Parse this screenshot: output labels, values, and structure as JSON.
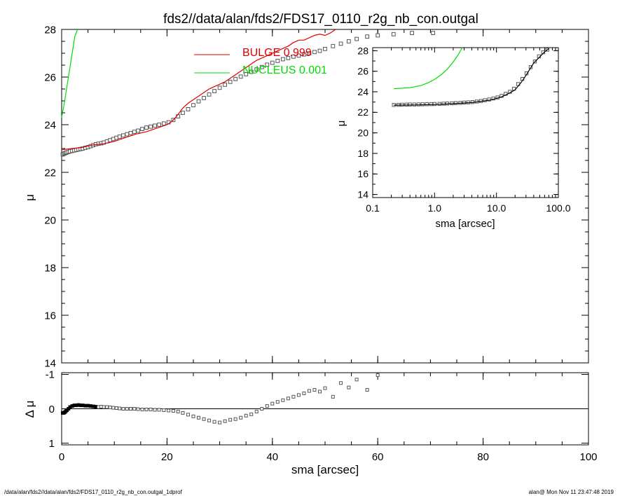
{
  "title": "fds2//data/alan/fds2/FDS17_0110_r2g_nb_con.outgal",
  "footer": {
    "left": "/data/alan/fds2//data/alan/fds2/FDS17_0110_r2g_nb_con.outgal_1dprof",
    "right": "alan@  Mon Nov 11 23:47:48 2019"
  },
  "colors": {
    "bulge": "#e00000",
    "nucleus": "#00dd00",
    "data": "#555555",
    "axes": "#000000"
  },
  "legend": [
    {
      "label": "BULGE  0.999",
      "color": "#e00000"
    },
    {
      "label": "NUCLEUS  0.001",
      "color": "#00dd00"
    }
  ],
  "chart_data": [
    {
      "type": "scatter",
      "panel": "main",
      "xlabel": "",
      "ylabel": "μ",
      "xlim": [
        0,
        100
      ],
      "ylim": [
        28,
        14
      ],
      "y_inverted": true,
      "xticks": [
        "0",
        "20",
        "40",
        "60",
        "80",
        "100"
      ],
      "yticks": [
        "14",
        "16",
        "18",
        "20",
        "22",
        "24",
        "26",
        "28"
      ],
      "legend_placement": "top-center",
      "series": [
        {
          "name": "data",
          "marker": "square",
          "x": [
            0.2,
            0.4,
            0.6,
            0.8,
            1.0,
            1.3,
            1.6,
            2.0,
            2.4,
            2.8,
            3.2,
            3.6,
            4.0,
            4.5,
            5.0,
            5.5,
            6.0,
            6.5,
            7.0,
            7.5,
            8.0,
            8.6,
            9.2,
            9.8,
            10.4,
            11.0,
            11.7,
            12.4,
            13.1,
            13.8,
            14.5,
            15.3,
            16.1,
            16.9,
            17.7,
            18.5,
            19.4,
            20.3,
            21.2,
            22.1,
            23.0,
            24.0,
            25.0,
            26.0,
            27.0,
            28.0,
            29.0,
            30.0,
            31.0,
            32.0,
            33.0,
            34.0,
            35.0,
            36.0,
            37.0,
            38.0,
            39.0,
            40.0,
            41.0,
            42.0,
            43.0,
            44.0,
            45.0,
            46.0,
            47.0,
            48.0,
            49.0,
            50.0,
            51.5,
            53.0,
            54.5,
            56.0,
            58.0,
            60.0,
            63.0,
            66.5,
            70.5
          ],
          "y": [
            22.75,
            22.78,
            22.8,
            22.82,
            22.84,
            22.86,
            22.88,
            22.9,
            22.92,
            22.94,
            22.96,
            22.98,
            23.0,
            23.03,
            23.06,
            23.1,
            23.14,
            23.18,
            23.2,
            23.22,
            23.25,
            23.3,
            23.35,
            23.4,
            23.45,
            23.5,
            23.55,
            23.6,
            23.65,
            23.7,
            23.75,
            23.82,
            23.88,
            23.92,
            23.96,
            24.0,
            24.05,
            24.1,
            24.2,
            24.35,
            24.5,
            24.65,
            24.82,
            24.98,
            25.12,
            25.27,
            25.41,
            25.55,
            25.68,
            25.8,
            25.92,
            26.02,
            26.12,
            26.22,
            26.32,
            26.42,
            26.52,
            26.6,
            26.68,
            26.75,
            26.8,
            26.86,
            26.9,
            26.95,
            27.0,
            27.05,
            27.1,
            27.18,
            27.3,
            27.4,
            27.5,
            27.6,
            27.7,
            27.75,
            27.8,
            27.85,
            27.85
          ]
        },
        {
          "name": "BULGE",
          "style": "line",
          "x": [
            0,
            2,
            4,
            6,
            8,
            10,
            12,
            14,
            16,
            18,
            20,
            21,
            22,
            23,
            24,
            25,
            26,
            27,
            28,
            29,
            30,
            31,
            32,
            33,
            34,
            35,
            36,
            37,
            38,
            39,
            40,
            41,
            42,
            43,
            44,
            45,
            46,
            47,
            48,
            49,
            50,
            51,
            52
          ],
          "y": [
            22.95,
            23.0,
            23.05,
            23.15,
            23.2,
            23.3,
            23.45,
            23.6,
            23.7,
            23.85,
            24.0,
            24.15,
            24.4,
            24.7,
            24.9,
            25.05,
            25.2,
            25.35,
            25.5,
            25.6,
            25.7,
            25.8,
            25.95,
            26.1,
            26.25,
            26.4,
            26.55,
            26.7,
            26.8,
            26.9,
            27.0,
            27.1,
            27.2,
            27.3,
            27.45,
            27.55,
            27.55,
            27.65,
            27.75,
            27.8,
            27.75,
            27.85,
            28.0
          ]
        },
        {
          "name": "NUCLEUS",
          "style": "line",
          "x": [
            0,
            0.5,
            1.0,
            1.5,
            2.0,
            2.5,
            3.0
          ],
          "y": [
            24.3,
            24.9,
            25.6,
            26.3,
            27.0,
            27.7,
            28.0
          ]
        }
      ]
    },
    {
      "type": "scatter",
      "panel": "residual",
      "xlabel": "sma [arcsec]",
      "ylabel": "Δ μ",
      "xlim": [
        0,
        100
      ],
      "ylim": [
        -1.05,
        1.05
      ],
      "xticks": [
        "0",
        "20",
        "40",
        "60",
        "80",
        "100"
      ],
      "yticks": [
        "1",
        "0",
        "-1"
      ],
      "zero_line": true,
      "series": [
        {
          "name": "residual",
          "marker": "square",
          "x": [
            0.2,
            0.4,
            0.6,
            0.8,
            1.0,
            1.3,
            1.6,
            2.0,
            2.4,
            2.8,
            3.2,
            3.6,
            4.0,
            4.5,
            5.0,
            5.5,
            6.0,
            6.5,
            7.0,
            7.5,
            8.0,
            8.6,
            9.2,
            9.8,
            10.4,
            11.0,
            11.7,
            12.4,
            13.1,
            13.8,
            14.5,
            15.3,
            16.1,
            16.9,
            17.7,
            18.5,
            19.4,
            20.3,
            21.2,
            22.1,
            23.0,
            24.0,
            25.0,
            26.0,
            27.0,
            28.0,
            29.0,
            30.0,
            31.0,
            32.0,
            33.0,
            34.0,
            35.0,
            36.0,
            37.0,
            38.0,
            39.0,
            40.0,
            41.0,
            42.0,
            43.0,
            44.0,
            45.0,
            46.0,
            47.0,
            48.0,
            49.0,
            50.0,
            51.5,
            53.0,
            54.5,
            56.0,
            58.0,
            60.0
          ],
          "y": [
            0.12,
            0.12,
            0.1,
            0.07,
            0.04,
            0.0,
            -0.05,
            -0.08,
            -0.1,
            -0.1,
            -0.11,
            -0.1,
            -0.1,
            -0.09,
            -0.09,
            -0.08,
            -0.07,
            -0.06,
            -0.05,
            -0.06,
            -0.05,
            -0.05,
            -0.04,
            -0.03,
            -0.02,
            -0.01,
            0.0,
            0.0,
            0.0,
            0.0,
            0.01,
            0.02,
            0.02,
            0.02,
            0.03,
            0.03,
            0.04,
            0.05,
            0.06,
            0.08,
            0.12,
            0.17,
            0.22,
            0.26,
            0.3,
            0.34,
            0.38,
            0.4,
            0.36,
            0.32,
            0.3,
            0.26,
            0.2,
            0.16,
            0.08,
            0.0,
            -0.08,
            -0.15,
            -0.2,
            -0.25,
            -0.3,
            -0.35,
            -0.4,
            -0.45,
            -0.52,
            -0.55,
            -0.5,
            -0.6,
            -0.35,
            -0.75,
            -0.62,
            -0.85,
            -0.55,
            -0.98
          ]
        }
      ]
    },
    {
      "type": "scatter",
      "panel": "inset",
      "xlabel": "sma [arcsec]",
      "ylabel": "μ",
      "x_scale": "log",
      "xlim": [
        0.1,
        100
      ],
      "ylim": [
        28.3,
        13.7
      ],
      "y_inverted": true,
      "xticks": [
        "0.1",
        "1.0",
        "10.0",
        "100.0"
      ],
      "yticks": [
        "14",
        "16",
        "18",
        "20",
        "22",
        "24",
        "26",
        "28"
      ],
      "series": [
        {
          "name": "data",
          "marker": "square",
          "x": [
            0.22,
            0.26,
            0.3,
            0.35,
            0.4,
            0.47,
            0.55,
            0.64,
            0.75,
            0.88,
            1.0,
            1.2,
            1.4,
            1.6,
            1.9,
            2.2,
            2.6,
            3.0,
            3.5,
            4.1,
            4.8,
            5.6,
            6.5,
            7.6,
            8.9,
            10.4,
            12.1,
            14.1,
            16.5,
            19.2,
            22.4,
            26.2,
            30.6,
            35.7,
            41.7,
            48.7,
            56.8,
            66.3
          ],
          "y": [
            22.72,
            22.73,
            22.74,
            22.75,
            22.76,
            22.76,
            22.77,
            22.78,
            22.79,
            22.8,
            22.81,
            22.82,
            22.84,
            22.86,
            22.88,
            22.9,
            22.92,
            22.95,
            22.97,
            23.0,
            23.05,
            23.1,
            23.18,
            23.25,
            23.35,
            23.45,
            23.6,
            23.8,
            24.0,
            24.3,
            24.75,
            25.25,
            25.8,
            26.4,
            26.95,
            27.45,
            27.85,
            28.1
          ]
        },
        {
          "name": "model",
          "style": "line",
          "x": [
            0.22,
            0.5,
            1.0,
            2.0,
            4.0,
            8.0,
            12.0,
            16.0,
            20.0,
            25.0,
            30.0,
            40.0,
            50.0,
            60.0,
            70.0
          ],
          "y": [
            22.7,
            22.72,
            22.76,
            22.84,
            22.95,
            23.2,
            23.5,
            23.85,
            24.2,
            24.9,
            25.6,
            26.8,
            27.4,
            27.9,
            28.2
          ]
        },
        {
          "name": "NUCLEUS",
          "style": "line",
          "x": [
            0.22,
            0.4,
            0.6,
            0.8,
            1.0,
            1.3,
            1.6,
            2.0,
            2.4,
            2.8
          ],
          "y": [
            24.3,
            24.4,
            24.6,
            24.9,
            25.2,
            25.7,
            26.2,
            26.9,
            27.6,
            28.3
          ]
        }
      ]
    }
  ]
}
